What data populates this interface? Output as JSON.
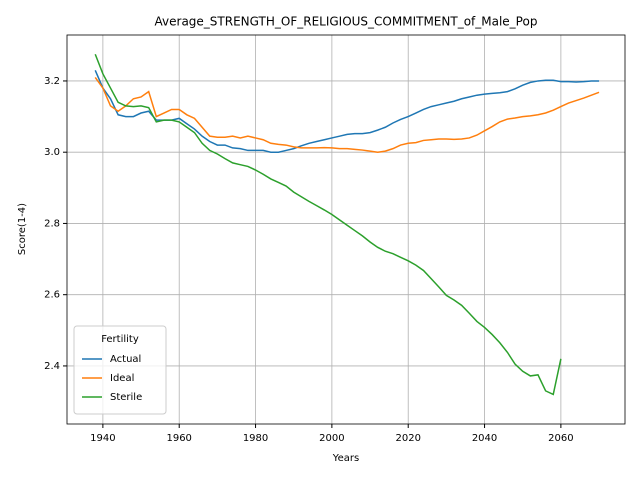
{
  "chart_data": {
    "type": "line",
    "title": "Average_STRENGTH_OF_RELIGIOUS_COMMITMENT_of_Male_Pop",
    "x_label": "Years",
    "y_label": "Score(1-4)",
    "x": [
      1938,
      1940,
      1942,
      1944,
      1946,
      1948,
      1950,
      1952,
      1954,
      1956,
      1958,
      1960,
      1962,
      1964,
      1966,
      1968,
      1970,
      1972,
      1974,
      1976,
      1978,
      1980,
      1982,
      1984,
      1986,
      1988,
      1990,
      1992,
      1994,
      1996,
      1998,
      2000,
      2002,
      2004,
      2006,
      2008,
      2010,
      2012,
      2014,
      2016,
      2018,
      2020,
      2022,
      2024,
      2026,
      2028,
      2030,
      2032,
      2034,
      2036,
      2038,
      2040,
      2042,
      2044,
      2046,
      2048,
      2050,
      2052,
      2054,
      2056,
      2058,
      2060,
      2062,
      2064,
      2066,
      2068,
      2070
    ],
    "series": [
      {
        "name": "Actual",
        "color": "#1f77b4",
        "values": [
          3.23,
          3.18,
          3.15,
          3.105,
          3.1,
          3.1,
          3.11,
          3.115,
          3.09,
          3.09,
          3.09,
          3.095,
          3.08,
          3.065,
          3.045,
          3.03,
          3.02,
          3.02,
          3.012,
          3.01,
          3.005,
          3.005,
          3.005,
          3.0,
          3.0,
          3.005,
          3.01,
          3.018,
          3.025,
          3.03,
          3.035,
          3.04,
          3.045,
          3.05,
          3.052,
          3.052,
          3.055,
          3.062,
          3.07,
          3.082,
          3.092,
          3.1,
          3.11,
          3.12,
          3.128,
          3.133,
          3.138,
          3.143,
          3.15,
          3.155,
          3.16,
          3.163,
          3.165,
          3.167,
          3.17,
          3.178,
          3.188,
          3.196,
          3.2,
          3.202,
          3.202,
          3.198,
          3.198,
          3.197,
          3.198,
          3.2,
          3.2
        ]
      },
      {
        "name": "Ideal",
        "color": "#ff7f0e",
        "values": [
          3.21,
          3.18,
          3.13,
          3.115,
          3.13,
          3.15,
          3.155,
          3.17,
          3.1,
          3.11,
          3.12,
          3.12,
          3.105,
          3.095,
          3.07,
          3.045,
          3.042,
          3.042,
          3.045,
          3.04,
          3.045,
          3.04,
          3.035,
          3.025,
          3.022,
          3.02,
          3.015,
          3.012,
          3.012,
          3.012,
          3.013,
          3.012,
          3.01,
          3.01,
          3.008,
          3.006,
          3.003,
          3.0,
          3.003,
          3.01,
          3.02,
          3.025,
          3.027,
          3.033,
          3.035,
          3.037,
          3.037,
          3.036,
          3.037,
          3.04,
          3.048,
          3.06,
          3.072,
          3.085,
          3.093,
          3.096,
          3.1,
          3.102,
          3.105,
          3.11,
          3.118,
          3.128,
          3.138,
          3.145,
          3.152,
          3.16,
          3.168
        ]
      },
      {
        "name": "Sterile",
        "color": "#2ca02c",
        "values": [
          3.275,
          3.22,
          3.18,
          3.14,
          3.13,
          3.128,
          3.13,
          3.125,
          3.085,
          3.09,
          3.09,
          3.085,
          3.07,
          3.055,
          3.025,
          3.005,
          2.995,
          2.982,
          2.97,
          2.965,
          2.96,
          2.95,
          2.938,
          2.925,
          2.915,
          2.905,
          2.888,
          2.875,
          2.862,
          2.85,
          2.838,
          2.825,
          2.81,
          2.795,
          2.78,
          2.765,
          2.748,
          2.733,
          2.722,
          2.715,
          2.705,
          2.695,
          2.683,
          2.668,
          2.645,
          2.622,
          2.598,
          2.585,
          2.57,
          2.548,
          2.525,
          2.508,
          2.488,
          2.465,
          2.438,
          2.405,
          2.385,
          2.372,
          2.375,
          2.33,
          2.32,
          2.42,
          null,
          null,
          null,
          null,
          null
        ]
      }
    ],
    "xlim": [
      1930.6,
      2076.8
    ],
    "xticks": [
      1940,
      1960,
      1980,
      2000,
      2020,
      2040,
      2060
    ],
    "ylim": [
      2.237,
      3.329
    ],
    "yticks": [
      2.4,
      2.6,
      2.8,
      {
        "value": 3,
        "label": "3.0"
      },
      3.2
    ],
    "grid": true,
    "legend_title": "Fertility",
    "legend_position": "lower left"
  }
}
